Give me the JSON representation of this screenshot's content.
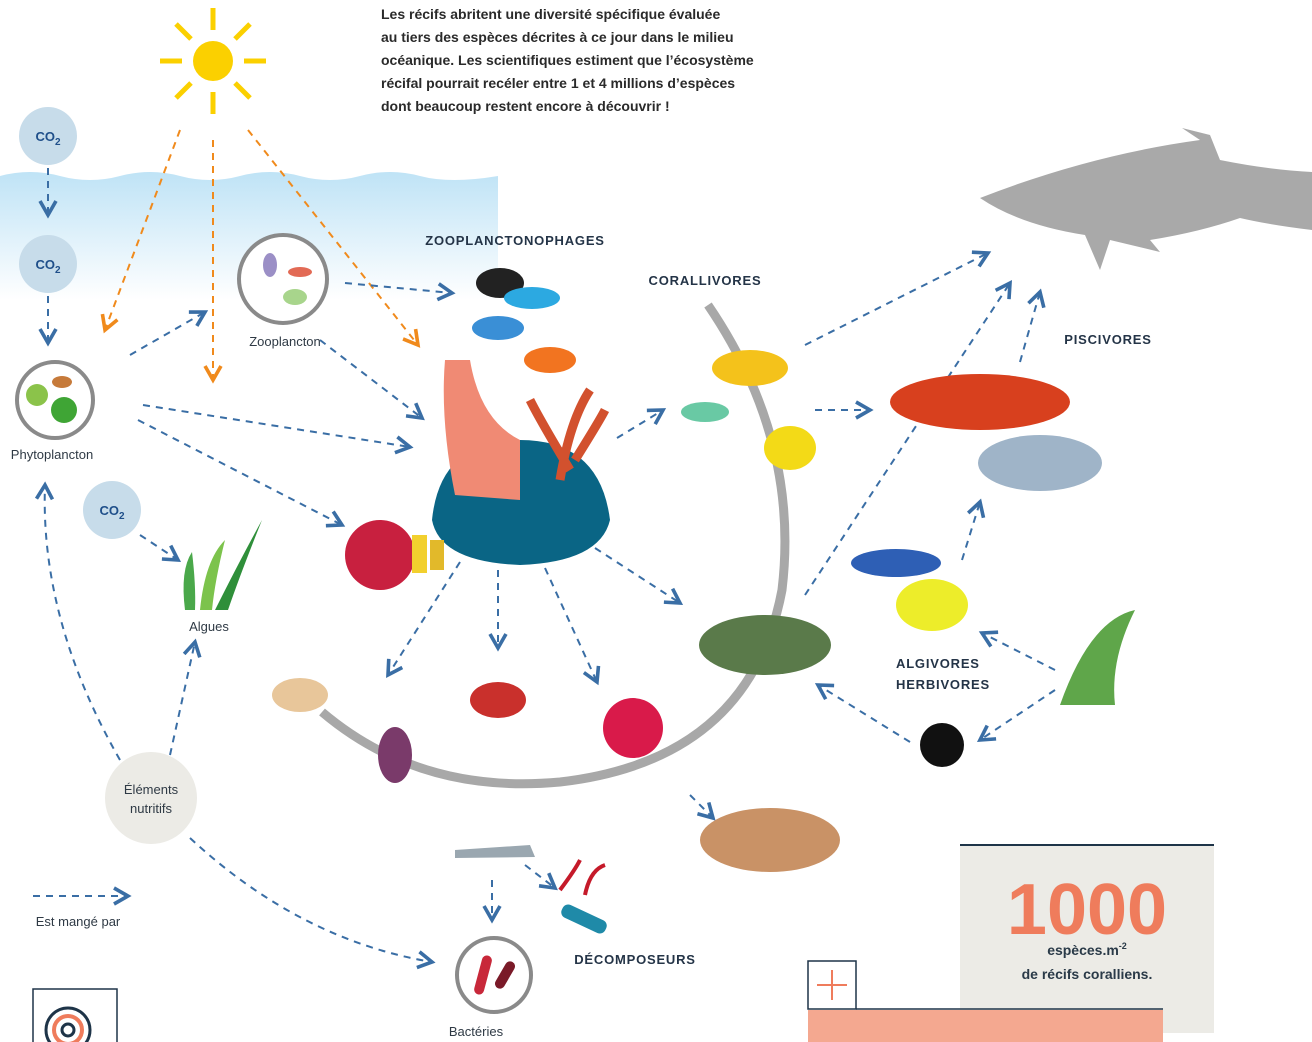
{
  "intro": [
    "Les récifs abritent une diversité spécifique évaluée",
    "au tiers des espèces décrites à ce jour dans le milieu",
    "océanique. Les scientifiques estiment que l’écosystème",
    "récifal pourrait recéler entre 1 et 4 millions d’espèces",
    "dont beaucoup restent encore à découvrir !"
  ],
  "co2": {
    "base": "CO",
    "sub": "2"
  },
  "labels": {
    "zooplankton": "Zooplancton",
    "phytoplankton": "Phytoplancton",
    "algae": "Algues",
    "nutrients": [
      "Éléments",
      "nutritifs"
    ],
    "bacteria": "Bactéries",
    "legend": "Est mangé par"
  },
  "groups": {
    "zooplanktivores": "ZOOPLANCTONOPHAGES",
    "corallivores": "CORALLIVORES",
    "piscivores": "PISCIVORES",
    "herbivores": [
      "ALGIVORES",
      "HERBIVORES"
    ],
    "decomposers": "DÉCOMPOSEURS"
  },
  "stat": {
    "number": "1000",
    "unit": "espèces.m",
    "exponent": "-2",
    "caption": "de récifs coralliens."
  }
}
